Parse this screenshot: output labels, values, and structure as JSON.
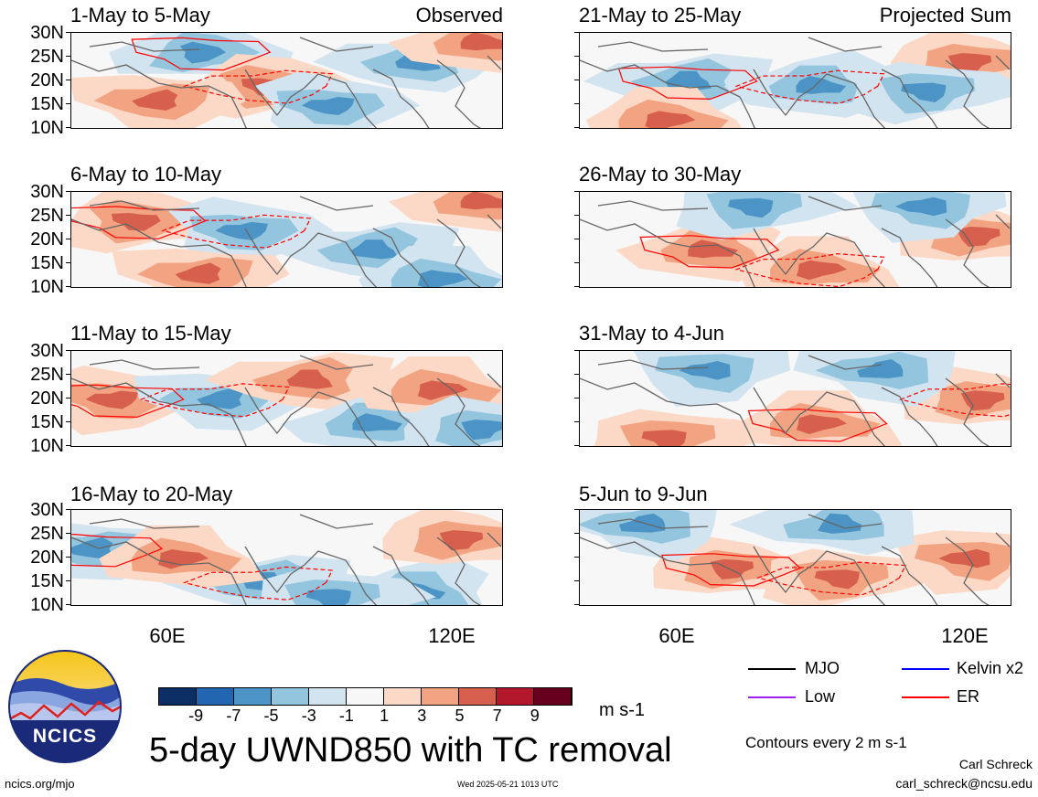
{
  "panels": [
    {
      "title": "1-May to 5-May",
      "tag": "Observed",
      "pattern": [
        [
          "-",
          0.3,
          0.2
        ],
        [
          "+",
          0.45,
          0.55
        ],
        [
          "-",
          0.6,
          0.75
        ],
        [
          "+",
          0.2,
          0.7
        ],
        [
          "-",
          0.8,
          0.3
        ],
        [
          "+",
          0.95,
          0.1
        ]
      ]
    },
    {
      "title": "6-May to 10-May",
      "tag": "",
      "pattern": [
        [
          "+",
          0.15,
          0.3
        ],
        [
          "-",
          0.4,
          0.4
        ],
        [
          "+",
          0.3,
          0.85
        ],
        [
          "-",
          0.7,
          0.6
        ],
        [
          "+",
          0.95,
          0.1
        ],
        [
          "-",
          0.85,
          0.9
        ]
      ]
    },
    {
      "title": "11-May to 15-May",
      "tag": "",
      "pattern": [
        [
          "+",
          0.1,
          0.5
        ],
        [
          "-",
          0.35,
          0.5
        ],
        [
          "+",
          0.55,
          0.3
        ],
        [
          "-",
          0.7,
          0.75
        ],
        [
          "+",
          0.85,
          0.4
        ],
        [
          "-",
          0.95,
          0.8
        ]
      ]
    },
    {
      "title": "16-May to 20-May",
      "tag": "",
      "pattern": [
        [
          "-",
          0.05,
          0.4
        ],
        [
          "-",
          0.45,
          0.75
        ],
        [
          "-",
          0.8,
          0.85
        ],
        [
          "+",
          0.25,
          0.5
        ],
        [
          "+",
          0.9,
          0.3
        ],
        [
          "-",
          0.6,
          0.9
        ]
      ]
    },
    {
      "title": "21-May to 25-May",
      "tag": "Projected Sum",
      "pattern": [
        [
          "-",
          0.25,
          0.5
        ],
        [
          "-",
          0.55,
          0.55
        ],
        [
          "+",
          0.2,
          0.9
        ],
        [
          "+",
          0.9,
          0.3
        ],
        [
          "-",
          0.8,
          0.6
        ]
      ]
    },
    {
      "title": "26-May to 30-May",
      "tag": "",
      "pattern": [
        [
          "+",
          0.3,
          0.6
        ],
        [
          "+",
          0.55,
          0.8
        ],
        [
          "+",
          0.92,
          0.45
        ],
        [
          "-",
          0.4,
          0.15
        ],
        [
          "-",
          0.8,
          0.15
        ]
      ]
    },
    {
      "title": "31-May to 4-Jun",
      "tag": "",
      "pattern": [
        [
          "+",
          0.55,
          0.75
        ],
        [
          "+",
          0.93,
          0.5
        ],
        [
          "+",
          0.2,
          0.9
        ],
        [
          "-",
          0.3,
          0.2
        ],
        [
          "-",
          0.7,
          0.2
        ]
      ]
    },
    {
      "title": "5-Jun to 9-Jun",
      "tag": "",
      "pattern": [
        [
          "+",
          0.35,
          0.6
        ],
        [
          "+",
          0.6,
          0.7
        ],
        [
          "+",
          0.9,
          0.5
        ],
        [
          "-",
          0.15,
          0.15
        ],
        [
          "-",
          0.6,
          0.15
        ]
      ]
    }
  ],
  "y_ticks": [
    "30N",
    "25N",
    "20N",
    "15N",
    "10N"
  ],
  "x_ticks": [
    "60E",
    "120E"
  ],
  "colorbar": {
    "labels": [
      "-9",
      "-7",
      "-5",
      "-3",
      "-1",
      "1",
      "3",
      "5",
      "7",
      "9"
    ],
    "colors": [
      "#0b2f63",
      "#2266b1",
      "#4b94c5",
      "#93c5de",
      "#d2e4f0",
      "#f7f7f7",
      "#fcd9c6",
      "#f2a482",
      "#d6604d",
      "#b3172b",
      "#67001f"
    ],
    "units": "m s-1"
  },
  "legend": [
    {
      "label": "MJO",
      "color": "#000000"
    },
    {
      "label": "Kelvin x2",
      "color": "#0000ff"
    },
    {
      "label": "Low",
      "color": "#a020f0"
    },
    {
      "label": "ER",
      "color": "#ff0000"
    }
  ],
  "contour_note": "Contours every 2 m s-1",
  "main_title": "5-day UWND850 with TC removal",
  "logo_text": "NCICS",
  "footer": {
    "left": "ncics.org/mjo",
    "center": "Wed 2025-05-21 1013 UTC",
    "author": "Carl Schreck",
    "email": "carl_schreck@ncsu.edu"
  }
}
